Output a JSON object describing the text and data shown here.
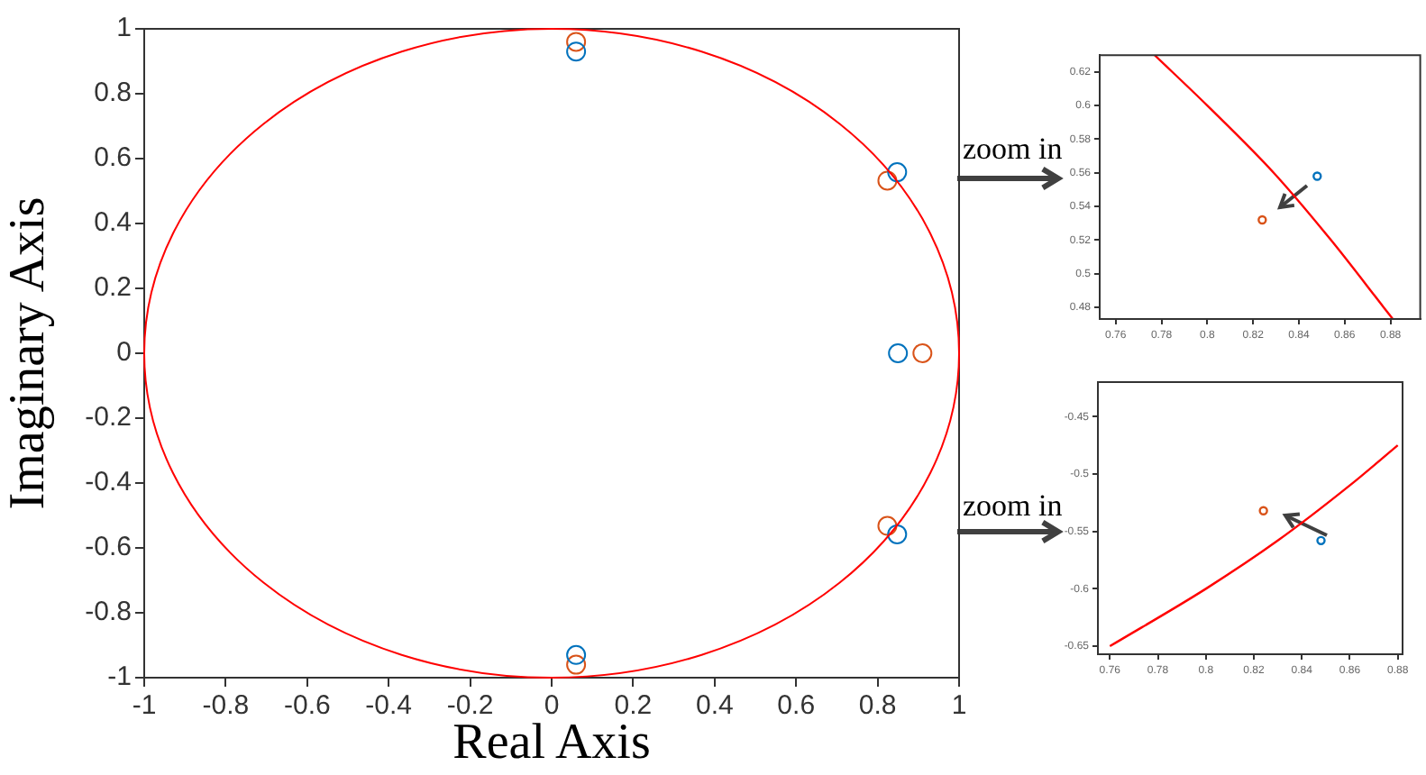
{
  "chart_data": [
    {
      "type": "scatter",
      "xlabel": "Real Axis",
      "ylabel": "Imaginary Axis",
      "xlim": [
        -1,
        1
      ],
      "ylim": [
        -1,
        1
      ],
      "xticks": [
        -1,
        -0.8,
        -0.6,
        -0.4,
        -0.2,
        0,
        0.2,
        0.4,
        0.6,
        0.8,
        1
      ],
      "yticks": [
        -1,
        -0.8,
        -0.6,
        -0.4,
        -0.2,
        0,
        0.2,
        0.4,
        0.6,
        0.8,
        1
      ],
      "grid": false,
      "legend": false,
      "annotations": [
        "zoom in",
        "zoom in"
      ],
      "series": [
        {
          "type": "scatter",
          "marker": "circle",
          "color": "#0072bd",
          "x": [
            0.06,
            0.06,
            0.848,
            0.848,
            0.85
          ],
          "values": [
            0.93,
            -0.93,
            0.558,
            -0.558,
            0
          ]
        },
        {
          "type": "scatter",
          "marker": "circle",
          "color": "#d95319",
          "x": [
            0.06,
            0.06,
            0.824,
            0.824,
            0.91
          ],
          "values": [
            0.96,
            -0.96,
            0.532,
            -0.532,
            0
          ]
        }
      ]
    },
    {
      "type": "scatter",
      "xlim": [
        0.753,
        0.893
      ],
      "ylim": [
        0.473,
        0.63
      ],
      "xticks": [
        0.76,
        0.78,
        0.8,
        0.82,
        0.84,
        0.86,
        0.88
      ],
      "yticks": [
        0.48,
        0.5,
        0.52,
        0.54,
        0.56,
        0.58,
        0.6,
        0.62
      ],
      "grid": false,
      "legend": false,
      "series": [
        {
          "type": "line",
          "marker": "none",
          "color": "#ff0000",
          "x": [
            0.777,
            0.8,
            0.829,
            0.854,
            0.877,
            0.881
          ],
          "values": [
            0.63,
            0.6,
            0.56,
            0.52,
            0.48,
            0.473
          ]
        },
        {
          "type": "scatter",
          "marker": "circle",
          "color": "#0072bd",
          "x": [
            0.848
          ],
          "values": [
            0.558
          ]
        },
        {
          "type": "scatter",
          "marker": "circle",
          "color": "#d95319",
          "x": [
            0.824
          ],
          "values": [
            0.532
          ]
        }
      ]
    },
    {
      "type": "scatter",
      "xlim": [
        0.755,
        0.882
      ],
      "ylim": [
        -0.657,
        -0.42
      ],
      "xticks": [
        0.76,
        0.78,
        0.8,
        0.82,
        0.84,
        0.86,
        0.88
      ],
      "yticks": [
        -0.65,
        -0.6,
        -0.55,
        -0.5,
        -0.45
      ],
      "grid": false,
      "legend": false,
      "series": [
        {
          "type": "line",
          "marker": "none",
          "color": "#ff0000",
          "x": [
            0.76,
            0.8,
            0.83,
            0.86,
            0.88
          ],
          "values": [
            -0.65,
            -0.6,
            -0.558,
            -0.51,
            -0.475
          ]
        },
        {
          "type": "scatter",
          "marker": "circle",
          "color": "#0072bd",
          "x": [
            0.848
          ],
          "values": [
            -0.558
          ]
        },
        {
          "type": "scatter",
          "marker": "circle",
          "color": "#d95319",
          "x": [
            0.824
          ],
          "values": [
            -0.532
          ]
        }
      ]
    }
  ]
}
